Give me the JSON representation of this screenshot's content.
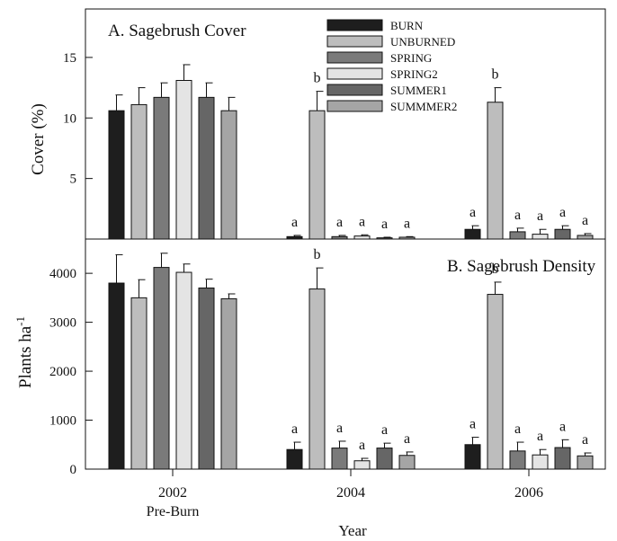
{
  "chart_data": [
    {
      "type": "bar",
      "title": "A. Sagebrush Cover",
      "ylabel": "Cover (%)",
      "xlabel": "",
      "ylim": [
        0,
        19
      ],
      "yticks": [
        5,
        10,
        15
      ],
      "categories": [
        "2002",
        "2004",
        "2006"
      ],
      "legend": {
        "placement": "top-right",
        "entries": [
          "BURN",
          "UNBURNED",
          "SPRING",
          "SPRING2",
          "SUMMER1",
          "SUMMMER2"
        ]
      },
      "series": [
        {
          "name": "BURN",
          "color": "#1e1e1e",
          "values": [
            10.6,
            0.2,
            0.8
          ],
          "errors": [
            1.3,
            0.1,
            0.3
          ]
        },
        {
          "name": "UNBURNED",
          "color": "#bdbdbd",
          "values": [
            11.1,
            10.6,
            11.3
          ],
          "errors": [
            1.4,
            1.6,
            1.2
          ]
        },
        {
          "name": "SPRING",
          "color": "#7a7a7a",
          "values": [
            11.7,
            0.2,
            0.6
          ],
          "errors": [
            1.2,
            0.1,
            0.3
          ]
        },
        {
          "name": "SPRING2",
          "color": "#e4e4e4",
          "values": [
            13.1,
            0.25,
            0.4
          ],
          "errors": [
            1.3,
            0.1,
            0.4
          ]
        },
        {
          "name": "SUMMER1",
          "color": "#666666",
          "values": [
            11.7,
            0.1,
            0.8
          ],
          "errors": [
            1.2,
            0.05,
            0.3
          ]
        },
        {
          "name": "SUMMMER2",
          "color": "#a5a5a5",
          "values": [
            10.6,
            0.15,
            0.3
          ],
          "errors": [
            1.1,
            0.05,
            0.15
          ]
        }
      ],
      "annotations": [
        [
          "",
          "",
          ""
        ],
        [
          "",
          "b",
          "b"
        ],
        [
          "",
          "a",
          "a"
        ],
        [
          "",
          "a",
          "a"
        ],
        [
          "",
          "a",
          "a"
        ],
        [
          "",
          "a",
          "a"
        ]
      ],
      "annotations_burn": [
        "",
        "a",
        "a"
      ]
    },
    {
      "type": "bar",
      "title": "B. Sagebrush Density",
      "ylabel": "Plants ha",
      "ylabel_sup": "-1",
      "xlabel": "Year",
      "ylim": [
        0,
        4700
      ],
      "yticks": [
        0,
        1000,
        2000,
        3000,
        4000
      ],
      "categories": [
        "2002",
        "2004",
        "2006"
      ],
      "category_sublabels": [
        "Pre-Burn",
        "",
        ""
      ],
      "series": [
        {
          "name": "BURN",
          "color": "#1e1e1e",
          "values": [
            3800,
            400,
            500
          ],
          "errors": [
            580,
            150,
            150
          ]
        },
        {
          "name": "UNBURNED",
          "color": "#bdbdbd",
          "values": [
            3500,
            3680,
            3570
          ],
          "errors": [
            370,
            430,
            250
          ]
        },
        {
          "name": "SPRING",
          "color": "#7a7a7a",
          "values": [
            4120,
            430,
            370
          ],
          "errors": [
            290,
            140,
            180
          ]
        },
        {
          "name": "SPRING2",
          "color": "#e4e4e4",
          "values": [
            4020,
            170,
            290
          ],
          "errors": [
            170,
            50,
            110
          ]
        },
        {
          "name": "SUMMER1",
          "color": "#666666",
          "values": [
            3700,
            430,
            440
          ],
          "errors": [
            180,
            100,
            160
          ]
        },
        {
          "name": "SUMMMER2",
          "color": "#a5a5a5",
          "values": [
            3480,
            280,
            270
          ],
          "errors": [
            100,
            70,
            60
          ]
        }
      ],
      "annotations": [
        [
          "",
          "a",
          "a"
        ],
        [
          "",
          "b",
          "b"
        ],
        [
          "",
          "a",
          "a"
        ],
        [
          "",
          "a",
          "a"
        ],
        [
          "",
          "a",
          "a"
        ],
        [
          "",
          "a",
          "a"
        ]
      ]
    }
  ]
}
